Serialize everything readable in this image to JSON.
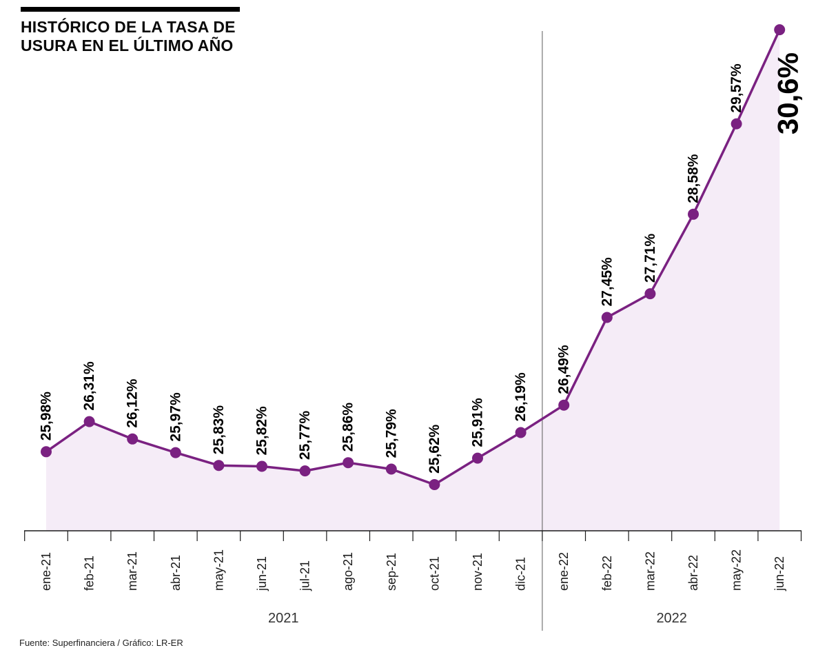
{
  "title": {
    "line1": "HISTÓRICO DE LA TASA DE",
    "line2": "USURA EN EL ÚLTIMO AÑO"
  },
  "source_credit": "Fuente: Superfinanciera / Gráfico: LR-ER",
  "chart_data": {
    "type": "area",
    "categories": [
      "ene-21",
      "feb-21",
      "mar-21",
      "abr-21",
      "may-21",
      "jun-21",
      "jul-21",
      "ago-21",
      "sep-21",
      "oct-21",
      "nov-21",
      "dic-21",
      "ene-22",
      "feb-22",
      "mar-22",
      "abr-22",
      "may-22",
      "jun-22"
    ],
    "values": [
      25.98,
      26.31,
      26.12,
      25.97,
      25.83,
      25.82,
      25.77,
      25.86,
      25.79,
      25.62,
      25.91,
      26.19,
      26.49,
      27.45,
      27.71,
      28.58,
      29.57,
      30.6
    ],
    "labels": [
      "25,98%",
      "26,31%",
      "26,12%",
      "25,97%",
      "25,83%",
      "25,82%",
      "25,77%",
      "25,86%",
      "25,79%",
      "25,62%",
      "25,91%",
      "26,19%",
      "26,49%",
      "27,45%",
      "27,71%",
      "28,58%",
      "29,57%",
      "30,6%"
    ],
    "year_groups": [
      {
        "label": "2021",
        "start": 0,
        "end": 11
      },
      {
        "label": "2022",
        "start": 12,
        "end": 17
      }
    ],
    "title": "Histórico de la tasa de usura en el último año",
    "xlabel": "",
    "ylabel": "",
    "ylim": [
      25.0,
      30.8
    ],
    "grid": false,
    "legend": "none",
    "colors": {
      "line": "#7a2181",
      "point": "#7a2181",
      "fill": "#f5ecf7",
      "divider": "#5a5a5a",
      "axis": "#1a1a1a",
      "label_text": "#000000"
    }
  }
}
